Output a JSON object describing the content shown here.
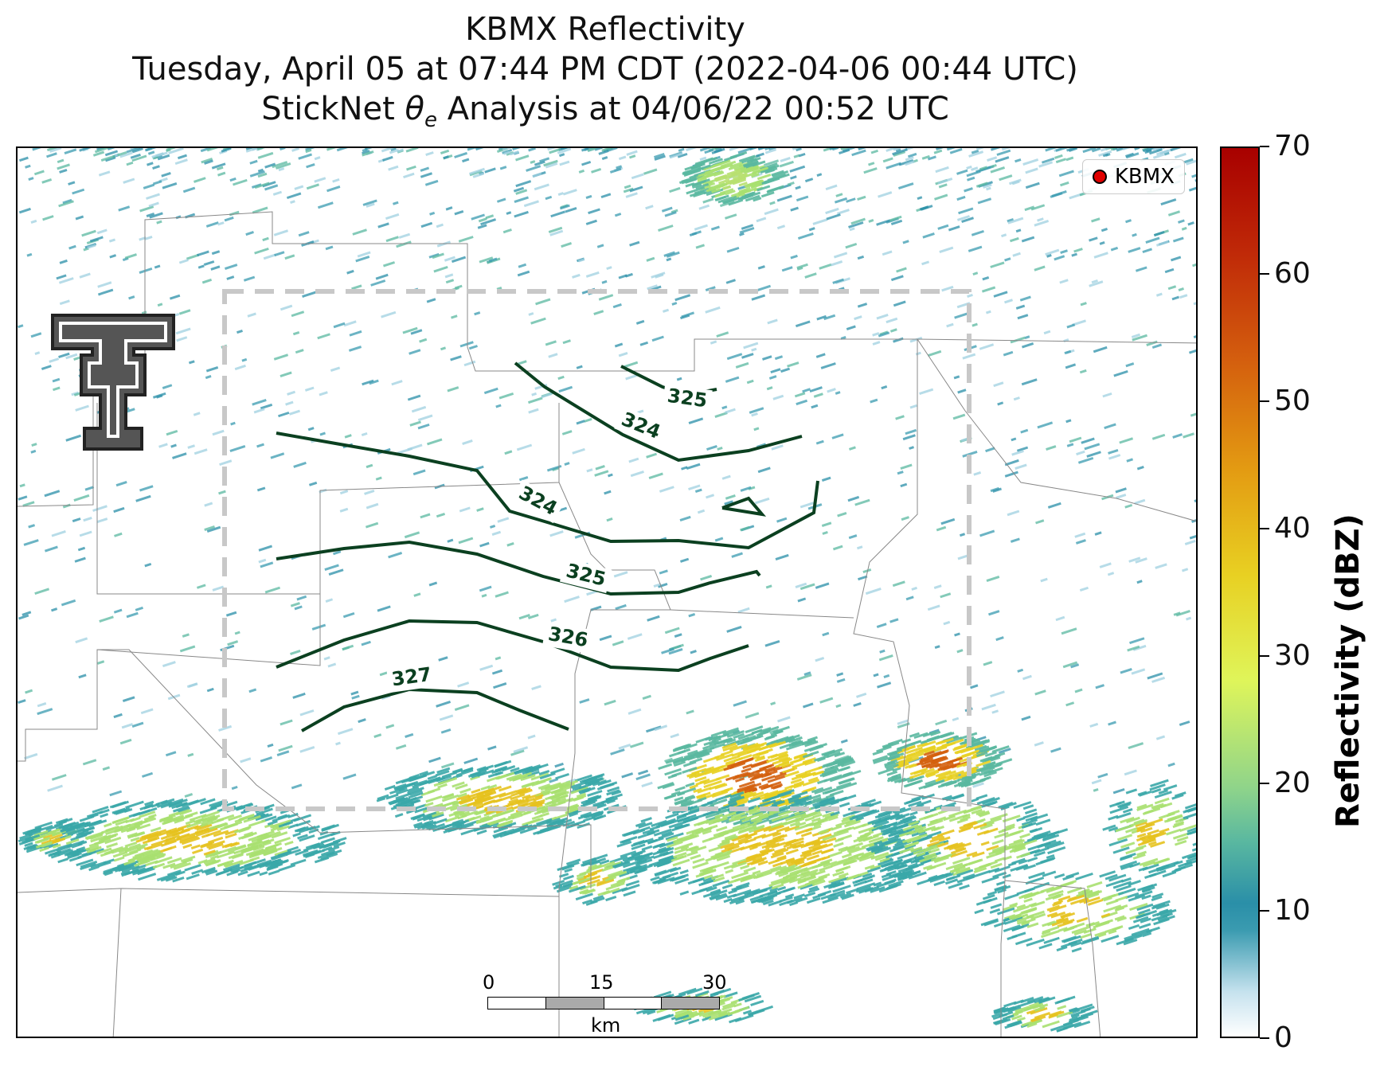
{
  "title": {
    "line1": "KBMX Reflectivity",
    "line2": "Tuesday, April 05 at 07:44 PM CDT (2022-04-06 00:44 UTC)",
    "line3_prefix": "StickNet ",
    "line3_symbol": "θ",
    "line3_sub": "e",
    "line3_suffix": " Analysis at 04/06/22 00:52 UTC"
  },
  "legend": {
    "label": "KBMX",
    "marker_color": "#e00000"
  },
  "scalebar": {
    "labels": [
      "0",
      "15",
      "30"
    ],
    "unit": "km"
  },
  "colorbar": {
    "title": "Reflectivity (dBZ)",
    "ticks": [
      "0",
      "10",
      "20",
      "30",
      "40",
      "50",
      "60",
      "70"
    ],
    "range": [
      0,
      70
    ]
  },
  "contours": {
    "color": "#0b4020",
    "labels": [
      "325",
      "324",
      "324",
      "325",
      "326",
      "327"
    ]
  },
  "analysis_box_color": "#c8c8c8",
  "logo": {
    "name": "texas-tech-double-t-logo"
  }
}
